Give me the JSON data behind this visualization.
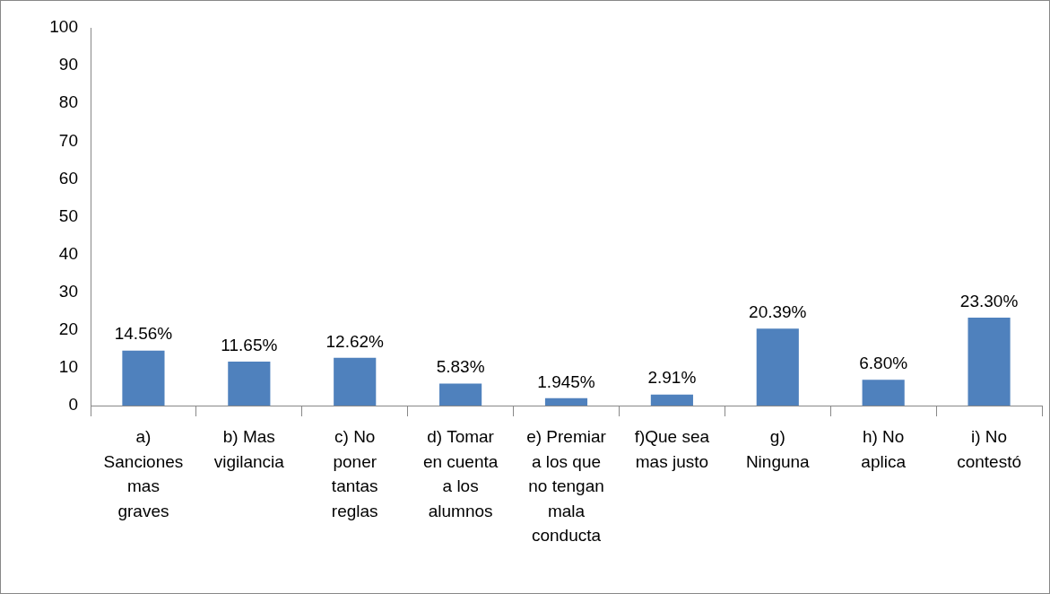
{
  "chart_data": {
    "type": "bar",
    "categories": [
      "a) Sanciones mas graves",
      "b) Mas vigilancia",
      "c) No poner tantas reglas",
      "d) Tomar en cuenta a los alumnos",
      "e) Premiar a los que no tengan mala conducta",
      "f)Que sea mas justo",
      "g) Ninguna",
      "h) No aplica",
      "i) No contestó"
    ],
    "values": [
      14.56,
      11.65,
      12.62,
      5.83,
      1.945,
      2.91,
      20.39,
      6.8,
      23.3
    ],
    "value_labels": [
      "14.56%",
      "11.65%",
      "12.62%",
      "5.83%",
      "1.945%",
      "2.91%",
      "20.39%",
      "6.80%",
      "23.30%"
    ],
    "color": "#4f81bd",
    "ylim": [
      0,
      100
    ],
    "yticks": [
      0,
      10,
      20,
      30,
      40,
      50,
      60,
      70,
      80,
      90,
      100
    ],
    "grid": false,
    "legend": false
  }
}
